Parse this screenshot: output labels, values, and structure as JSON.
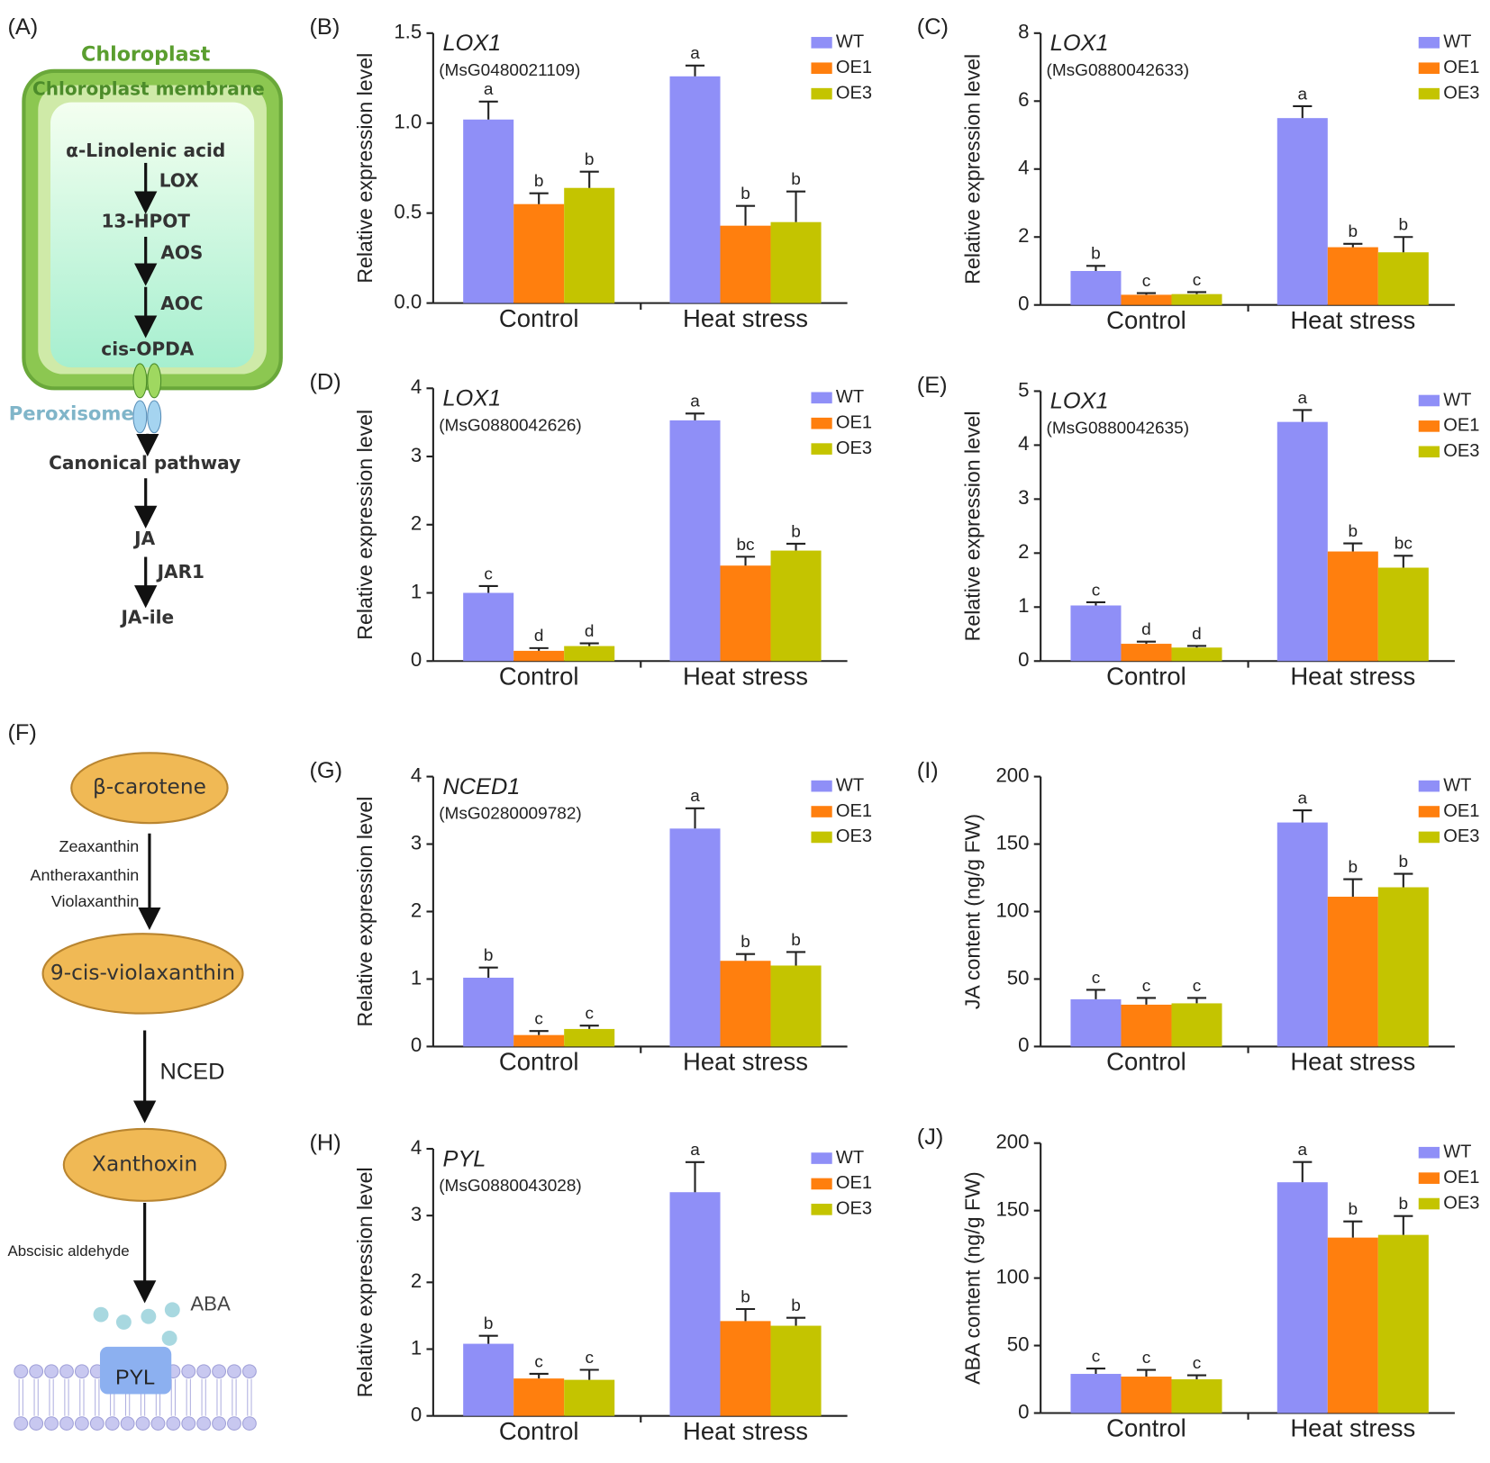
{
  "diagram_a": {
    "label": "(A)",
    "chloroplast": "Chloroplast",
    "membrane": "Chloroplast membrane",
    "lnl": "α-Linolenic acid",
    "lox": "LOX",
    "hpot": "13-HPOT",
    "aos": "AOS",
    "aoc": "AOC",
    "opda": "cis-OPDA",
    "peroxisome": "Peroxisome",
    "canonical": "Canonical pathway",
    "ja": "JA",
    "jar1": "JAR1",
    "jaile": "JA-ile"
  },
  "diagram_f": {
    "label": "(F)",
    "carotene": "β-carotene",
    "zea": "Zeaxanthin",
    "anthera": "Antheraxanthin",
    "viola": "Violaxanthin",
    "cisviola": "9-cis-violaxanthin",
    "nced": "NCED",
    "xanthoxin": "Xanthoxin",
    "aldehyde": "Abscisic aldehyde",
    "aba": "ABA",
    "pyl": "PYL"
  },
  "chart_data": [
    {
      "type": "bar",
      "label": "(B)",
      "gene": "LOX1",
      "gene_id": "(MsG0480021109)",
      "ylabel": "Relative expression level",
      "categories": [
        "Control",
        "Heat stress"
      ],
      "ylim": [
        0,
        1.5
      ],
      "yticks": [
        {
          "value": 0,
          "label": "0.0"
        },
        0.5,
        {
          "value": 1,
          "label": "1.0"
        },
        1.5
      ],
      "series": [
        {
          "name": "WT",
          "color": "#8f8ff7",
          "values": [
            1.02,
            1.26
          ],
          "errors": [
            0.1,
            0.06
          ],
          "letters": [
            "a",
            "a"
          ]
        },
        {
          "name": "OE1",
          "color": "#ff7f0e",
          "values": [
            0.55,
            0.43
          ],
          "errors": [
            0.06,
            0.11
          ],
          "letters": [
            "b",
            "b"
          ]
        },
        {
          "name": "OE3",
          "color": "#c4c400",
          "values": [
            0.64,
            0.45
          ],
          "errors": [
            0.09,
            0.17
          ],
          "letters": [
            "b",
            "b"
          ]
        }
      ]
    },
    {
      "type": "bar",
      "label": "(C)",
      "gene": "LOX1",
      "gene_id": "(MsG0880042633)",
      "ylabel": "Relative expression level",
      "categories": [
        "Control",
        "Heat stress"
      ],
      "ylim": [
        0,
        8
      ],
      "yticks": [
        0,
        2,
        4,
        6,
        8
      ],
      "series": [
        {
          "name": "WT",
          "color": "#8f8ff7",
          "values": [
            1.0,
            5.5
          ],
          "errors": [
            0.15,
            0.35
          ],
          "letters": [
            "b",
            "a"
          ]
        },
        {
          "name": "OE1",
          "color": "#ff7f0e",
          "values": [
            0.3,
            1.7
          ],
          "errors": [
            0.05,
            0.1
          ],
          "letters": [
            "c",
            "b"
          ]
        },
        {
          "name": "OE3",
          "color": "#c4c400",
          "values": [
            0.32,
            1.55
          ],
          "errors": [
            0.06,
            0.45
          ],
          "letters": [
            "c",
            "b"
          ]
        }
      ]
    },
    {
      "type": "bar",
      "label": "(D)",
      "gene": "LOX1",
      "gene_id": "(MsG0880042626)",
      "ylabel": "Relative expression level",
      "categories": [
        "Control",
        "Heat stress"
      ],
      "ylim": [
        0,
        4
      ],
      "yticks": [
        0,
        1,
        2,
        3,
        4
      ],
      "series": [
        {
          "name": "WT",
          "color": "#8f8ff7",
          "values": [
            1.0,
            3.53
          ],
          "errors": [
            0.1,
            0.1
          ],
          "letters": [
            "c",
            "a"
          ]
        },
        {
          "name": "OE1",
          "color": "#ff7f0e",
          "values": [
            0.15,
            1.4
          ],
          "errors": [
            0.04,
            0.13
          ],
          "letters": [
            "d",
            "bc"
          ]
        },
        {
          "name": "OE3",
          "color": "#c4c400",
          "values": [
            0.22,
            1.62
          ],
          "errors": [
            0.04,
            0.1
          ],
          "letters": [
            "d",
            "b"
          ]
        }
      ]
    },
    {
      "type": "bar",
      "label": "(E)",
      "gene": "LOX1",
      "gene_id": "(MsG0880042635)",
      "ylabel": "Relative expression level",
      "categories": [
        "Control",
        "Heat stress"
      ],
      "ylim": [
        0,
        5
      ],
      "yticks": [
        0,
        1,
        2,
        3,
        4,
        5
      ],
      "series": [
        {
          "name": "WT",
          "color": "#8f8ff7",
          "values": [
            1.03,
            4.43
          ],
          "errors": [
            0.06,
            0.22
          ],
          "letters": [
            "c",
            "a"
          ]
        },
        {
          "name": "OE1",
          "color": "#ff7f0e",
          "values": [
            0.32,
            2.03
          ],
          "errors": [
            0.04,
            0.15
          ],
          "letters": [
            "d",
            "b"
          ]
        },
        {
          "name": "OE3",
          "color": "#c4c400",
          "values": [
            0.25,
            1.73
          ],
          "errors": [
            0.03,
            0.22
          ],
          "letters": [
            "d",
            "bc"
          ]
        }
      ]
    },
    {
      "type": "bar",
      "label": "(G)",
      "gene": "NCED1",
      "gene_id": "(MsG0280009782)",
      "ylabel": "Relative expression level",
      "categories": [
        "Control",
        "Heat stress"
      ],
      "ylim": [
        0,
        4
      ],
      "yticks": [
        0,
        1,
        2,
        3,
        4
      ],
      "series": [
        {
          "name": "WT",
          "color": "#8f8ff7",
          "values": [
            1.02,
            3.23
          ],
          "errors": [
            0.15,
            0.3
          ],
          "letters": [
            "b",
            "a"
          ]
        },
        {
          "name": "OE1",
          "color": "#ff7f0e",
          "values": [
            0.17,
            1.27
          ],
          "errors": [
            0.06,
            0.1
          ],
          "letters": [
            "c",
            "b"
          ]
        },
        {
          "name": "OE3",
          "color": "#c4c400",
          "values": [
            0.26,
            1.2
          ],
          "errors": [
            0.05,
            0.2
          ],
          "letters": [
            "c",
            "b"
          ]
        }
      ]
    },
    {
      "type": "bar",
      "label": "(H)",
      "gene": "PYL",
      "gene_id": "(MsG0880043028)",
      "ylabel": "Relative expression level",
      "categories": [
        "Control",
        "Heat stress"
      ],
      "ylim": [
        0,
        4
      ],
      "yticks": [
        0,
        1,
        2,
        3,
        4
      ],
      "series": [
        {
          "name": "WT",
          "color": "#8f8ff7",
          "values": [
            1.08,
            3.35
          ],
          "errors": [
            0.12,
            0.45
          ],
          "letters": [
            "b",
            "a"
          ]
        },
        {
          "name": "OE1",
          "color": "#ff7f0e",
          "values": [
            0.56,
            1.42
          ],
          "errors": [
            0.07,
            0.18
          ],
          "letters": [
            "c",
            "b"
          ]
        },
        {
          "name": "OE3",
          "color": "#c4c400",
          "values": [
            0.54,
            1.35
          ],
          "errors": [
            0.15,
            0.12
          ],
          "letters": [
            "c",
            "b"
          ]
        }
      ]
    },
    {
      "type": "bar",
      "label": "(I)",
      "ylabel": "JA content (ng/g FW)",
      "categories": [
        "Control",
        "Heat stress"
      ],
      "ylim": [
        0,
        200
      ],
      "yticks": [
        0,
        50,
        100,
        150,
        200
      ],
      "series": [
        {
          "name": "WT",
          "color": "#8f8ff7",
          "values": [
            35,
            166
          ],
          "errors": [
            7,
            9
          ],
          "letters": [
            "c",
            "a"
          ]
        },
        {
          "name": "OE1",
          "color": "#ff7f0e",
          "values": [
            31,
            111
          ],
          "errors": [
            5,
            13
          ],
          "letters": [
            "c",
            "b"
          ]
        },
        {
          "name": "OE3",
          "color": "#c4c400",
          "values": [
            32,
            118
          ],
          "errors": [
            4,
            10
          ],
          "letters": [
            "c",
            "b"
          ]
        }
      ]
    },
    {
      "type": "bar",
      "label": "(J)",
      "ylabel": "ABA content (ng/g FW)",
      "categories": [
        "Control",
        "Heat stress"
      ],
      "ylim": [
        0,
        200
      ],
      "yticks": [
        0,
        50,
        100,
        150,
        200
      ],
      "series": [
        {
          "name": "WT",
          "color": "#8f8ff7",
          "values": [
            29,
            171
          ],
          "errors": [
            4,
            15
          ],
          "letters": [
            "c",
            "a"
          ]
        },
        {
          "name": "OE1",
          "color": "#ff7f0e",
          "values": [
            27,
            130
          ],
          "errors": [
            5,
            12
          ],
          "letters": [
            "c",
            "b"
          ]
        },
        {
          "name": "OE3",
          "color": "#c4c400",
          "values": [
            25,
            132
          ],
          "errors": [
            3,
            14
          ],
          "letters": [
            "c",
            "b"
          ]
        }
      ]
    }
  ]
}
